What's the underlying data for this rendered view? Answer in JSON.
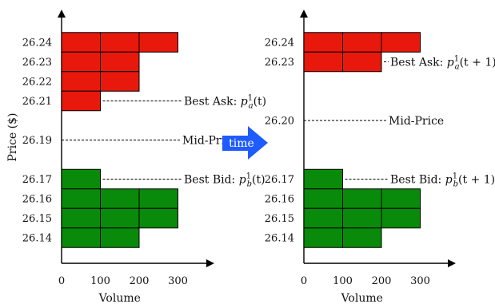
{
  "y_axis_label": "Price ($)",
  "x_axis_label": "Volume",
  "x_ticks": [
    "0",
    "100",
    "200",
    "300"
  ],
  "arrow_label": "time",
  "colors": {
    "ask": "#e8180c",
    "bid": "#0a8a0a",
    "arrow": "#1f5cff",
    "line": "#000000"
  },
  "panels": [
    {
      "asks": [
        {
          "price": "26.24",
          "volume": 300
        },
        {
          "price": "26.23",
          "volume": 200
        },
        {
          "price": "26.22",
          "volume": 200
        },
        {
          "price": "26.21",
          "volume": 100
        }
      ],
      "bids": [
        {
          "price": "26.17",
          "volume": 100
        },
        {
          "price": "26.16",
          "volume": 300
        },
        {
          "price": "26.15",
          "volume": 300
        },
        {
          "price": "26.14",
          "volume": 200
        }
      ],
      "mid_price": "26.19",
      "ask_annotation": {
        "text": "Best Ask: ",
        "sub": "a",
        "arg": "(t)"
      },
      "mid_annotation": "Mid-Price",
      "bid_annotation": {
        "text": "Best Bid: ",
        "sub": "b",
        "arg": "(t)"
      }
    },
    {
      "asks": [
        {
          "price": "26.24",
          "volume": 300
        },
        {
          "price": "26.23",
          "volume": 200
        }
      ],
      "bids": [
        {
          "price": "26.17",
          "volume": 100
        },
        {
          "price": "26.16",
          "volume": 300
        },
        {
          "price": "26.15",
          "volume": 300
        },
        {
          "price": "26.14",
          "volume": 200
        }
      ],
      "mid_price": "26.20",
      "ask_annotation": {
        "text": "Best Ask: ",
        "sub": "a",
        "arg": "(t + 1)"
      },
      "mid_annotation": "Mid-Price",
      "bid_annotation": {
        "text": "Best Bid: ",
        "sub": "b",
        "arg": "(t + 1)"
      }
    }
  ]
}
